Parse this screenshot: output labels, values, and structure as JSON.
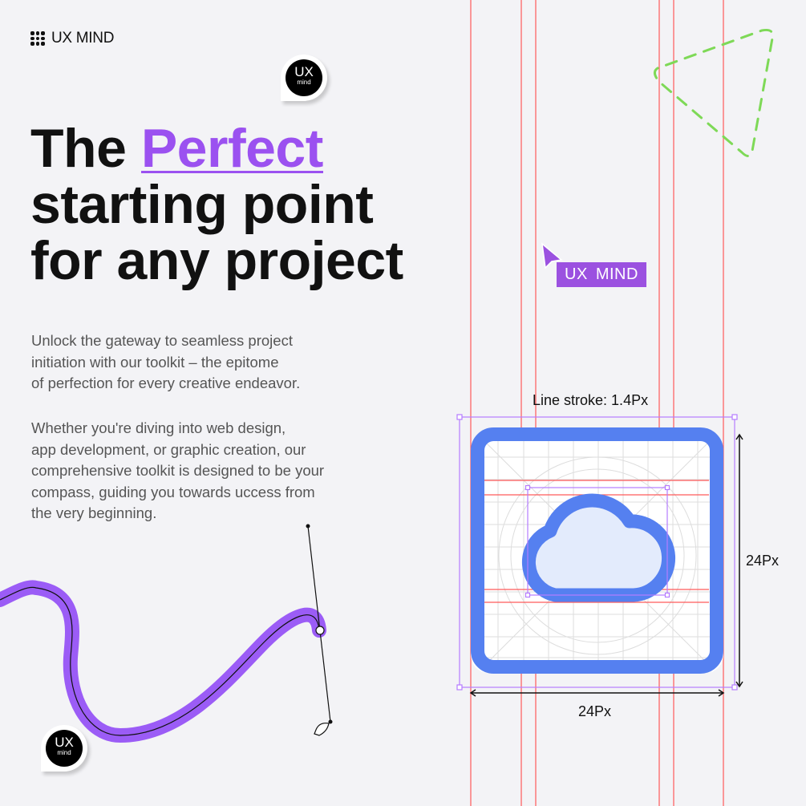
{
  "brand": {
    "name": "UX MIND"
  },
  "badge": {
    "line1": "UX",
    "line2": "mind"
  },
  "headline": {
    "word1": "The",
    "accent": "Perfect",
    "line2": "starting point",
    "line3": "for any project"
  },
  "paragraph1": [
    "Unlock the gateway to seamless project",
    "initiation with our toolkit – the epitome",
    "of perfection for every creative endeavor."
  ],
  "paragraph2": [
    "Whether you're diving into web design,",
    "app development, or graphic creation, our",
    "comprehensive toolkit is designed to be your",
    "compass, guiding you towards uccess from",
    "the very beginning."
  ],
  "cursor_tag": "UX MIND",
  "icon_spec": {
    "stroke_label": "Line stroke: 1.4Px",
    "height_label": "24Px",
    "width_label": "24Px",
    "icon": "cloud-icon"
  },
  "colors": {
    "background": "#f3f3f6",
    "accent_purple": "#9b51f0",
    "icon_blue": "#5580f0",
    "guide_red": "#ff4d4d",
    "dashed_green": "#7ed957",
    "cloud_fill": "#e3ebfc"
  }
}
